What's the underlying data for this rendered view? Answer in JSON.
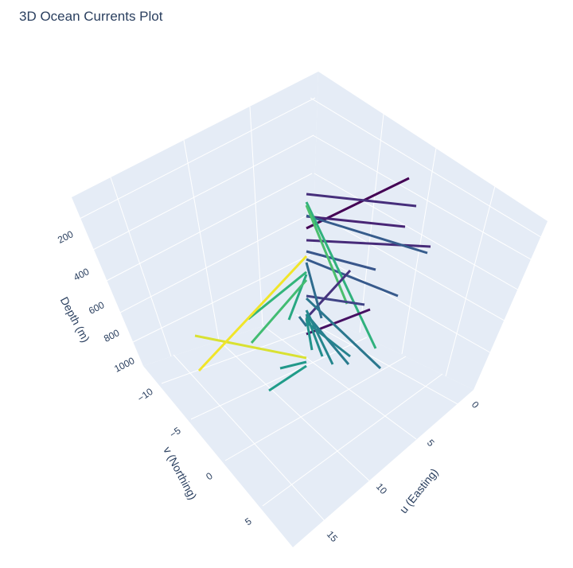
{
  "chart_data": {
    "type": "line3d",
    "title": "3D Ocean Currents Plot",
    "colors": {
      "pane": "#e5ecf6",
      "grid": "#ffffff",
      "text": "#2a3f5f"
    },
    "colorscale": "viridis",
    "axes": {
      "x": {
        "label": "u (Easting)",
        "ticks": [
          0,
          5,
          10,
          15
        ]
      },
      "y": {
        "label": "v (Northing)",
        "ticks": [
          -10,
          -5,
          0,
          5
        ]
      },
      "z": {
        "label": "Depth (m)",
        "ticks": [
          200,
          400,
          600,
          800,
          1000
        ],
        "reversed": true
      }
    },
    "segments": [
      {
        "c": 0.0,
        "p": [
          [
            385,
            287
          ],
          [
            514,
            224
          ]
        ]
      },
      {
        "c": 0.15,
        "p": [
          [
            385,
            244
          ],
          [
            523,
            259
          ]
        ]
      },
      {
        "c": 0.12,
        "p": [
          [
            385,
            272
          ],
          [
            509,
            285
          ]
        ]
      },
      {
        "c": 0.14,
        "p": [
          [
            385,
            302
          ],
          [
            541,
            310
          ]
        ]
      },
      {
        "c": 0.33,
        "p": [
          [
            385,
            271
          ],
          [
            537,
            318
          ]
        ]
      },
      {
        "c": 0.3,
        "p": [
          [
            385,
            316
          ],
          [
            472,
            339
          ]
        ]
      },
      {
        "c": 0.32,
        "p": [
          [
            385,
            326
          ],
          [
            500,
            372
          ]
        ]
      },
      {
        "c": 0.72,
        "p": [
          [
            385,
            254
          ],
          [
            472,
            438
          ]
        ]
      },
      {
        "c": 0.8,
        "p": [
          [
            385,
            258
          ],
          [
            436,
            382
          ]
        ]
      },
      {
        "c": 0.23,
        "p": [
          [
            385,
            372
          ],
          [
            458,
            383
          ]
        ]
      },
      {
        "c": 0.05,
        "p": [
          [
            385,
            420
          ],
          [
            465,
            389
          ]
        ]
      },
      {
        "c": 0.17,
        "p": [
          [
            385,
            400
          ],
          [
            440,
            340
          ]
        ]
      },
      {
        "c": 0.4,
        "p": [
          [
            385,
            330
          ],
          [
            404,
            400
          ]
        ]
      },
      {
        "c": 0.45,
        "p": [
          [
            385,
            375
          ],
          [
            478,
            463
          ]
        ]
      },
      {
        "c": 0.47,
        "p": [
          [
            385,
            395
          ],
          [
            438,
            458
          ]
        ]
      },
      {
        "c": 0.5,
        "p": [
          [
            385,
            405
          ],
          [
            440,
            448
          ]
        ]
      },
      {
        "c": 0.52,
        "p": [
          [
            385,
            390
          ],
          [
            418,
            458
          ]
        ]
      },
      {
        "c": 0.55,
        "p": [
          [
            385,
            395
          ],
          [
            405,
            448
          ]
        ]
      },
      {
        "c": 0.42,
        "p": [
          [
            385,
            410
          ],
          [
            376,
            398
          ]
        ]
      },
      {
        "c": 0.58,
        "p": [
          [
            385,
            400
          ],
          [
            392,
            440
          ]
        ]
      },
      {
        "c": 0.6,
        "p": [
          [
            385,
            455
          ],
          [
            352,
            463
          ]
        ]
      },
      {
        "c": 0.62,
        "p": [
          [
            385,
            460
          ],
          [
            338,
            491
          ]
        ]
      },
      {
        "c": 0.68,
        "p": [
          [
            385,
            345
          ],
          [
            363,
            402
          ]
        ]
      },
      {
        "c": 0.74,
        "p": [
          [
            385,
            342
          ],
          [
            312,
            401
          ]
        ]
      },
      {
        "c": 0.78,
        "p": [
          [
            385,
            352
          ],
          [
            316,
            431
          ]
        ]
      },
      {
        "c": 0.97,
        "p": [
          [
            385,
            450
          ],
          [
            245,
            422
          ]
        ]
      },
      {
        "c": 0.99,
        "p": [
          [
            385,
            322
          ],
          [
            250,
            466
          ]
        ]
      }
    ]
  }
}
